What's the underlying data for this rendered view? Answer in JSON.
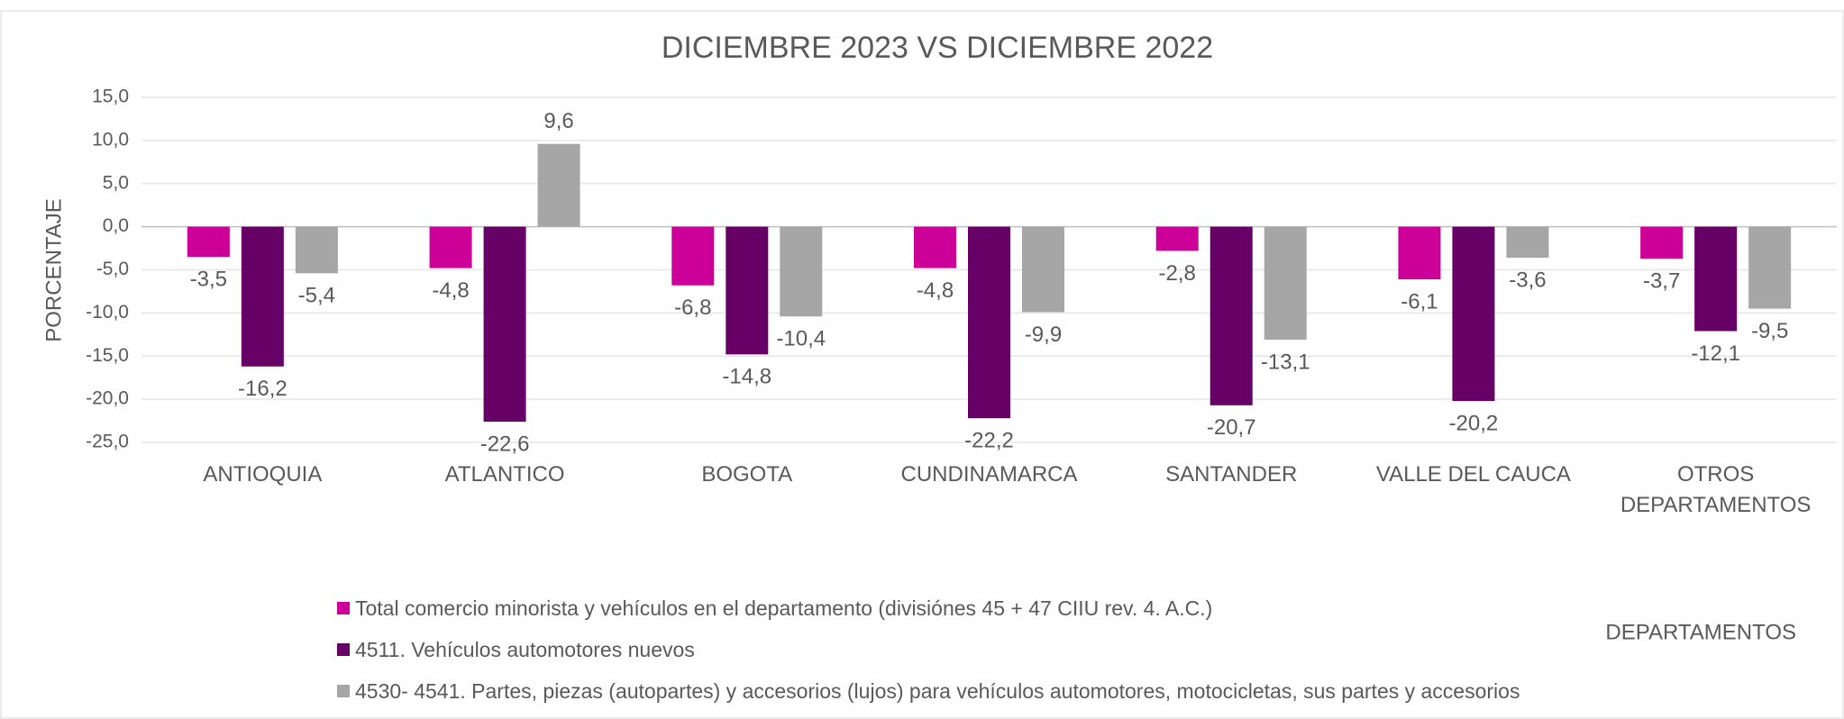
{
  "chart_data": {
    "type": "bar",
    "title": "DICIEMBRE 2023 VS DICIEMBRE 2022",
    "x_label": "DEPARTAMENTOS",
    "y_label": "PORCENTAJE",
    "categories": [
      "ANTIOQUIA",
      "ATLANTICO",
      "BOGOTA",
      "CUNDINAMARCA",
      "SANTANDER",
      "VALLE DEL CAUCA",
      "OTROS DEPARTAMENTOS"
    ],
    "series": [
      {
        "name": "Total comercio minorista y vehículos en el departamento (divisiónes 45 + 47  CIIU rev. 4. A.C.)",
        "color": "#cc0099",
        "values": [
          -3.5,
          -4.8,
          -6.8,
          -4.8,
          -2.8,
          -6.1,
          -3.7
        ],
        "value_labels": [
          "-3,5",
          "-4,8",
          "-6,8",
          "-4,8",
          "-2,8",
          "-6,1",
          "-3,7"
        ]
      },
      {
        "name": "4511. Vehículos automotores nuevos",
        "color": "#660066",
        "values": [
          -16.2,
          -22.6,
          -14.8,
          -22.2,
          -20.7,
          -20.2,
          -12.1
        ],
        "value_labels": [
          "-16,2",
          "-22,6",
          "-14,8",
          "-22,2",
          "-20,7",
          "-20,2",
          "-12,1"
        ]
      },
      {
        "name": "4530- 4541. Partes, piezas (autopartes) y accesorios (lujos) para vehículos automotores, motocicletas, sus partes y accesorios",
        "color": "#a6a6a6",
        "values": [
          -5.4,
          9.6,
          -10.4,
          -9.9,
          -13.1,
          -3.6,
          -9.5
        ],
        "value_labels": [
          "-5,4",
          "9,6",
          "-10,4",
          "-9,9",
          "-13,1",
          "-3,6",
          "-9,5"
        ]
      }
    ],
    "ylim": [
      -25,
      15
    ],
    "yticks": [
      {
        "value": -25,
        "label": "-25,0"
      },
      {
        "value": -20,
        "label": "-20,0"
      },
      {
        "value": -15,
        "label": "-15,0"
      },
      {
        "value": -10,
        "label": "-10,0"
      },
      {
        "value": -5,
        "label": "-5,0"
      },
      {
        "value": 0,
        "label": "0,0"
      },
      {
        "value": 5,
        "label": "5,0"
      },
      {
        "value": 10,
        "label": "10,0"
      },
      {
        "value": 15,
        "label": "15,0"
      }
    ],
    "grid": true
  }
}
